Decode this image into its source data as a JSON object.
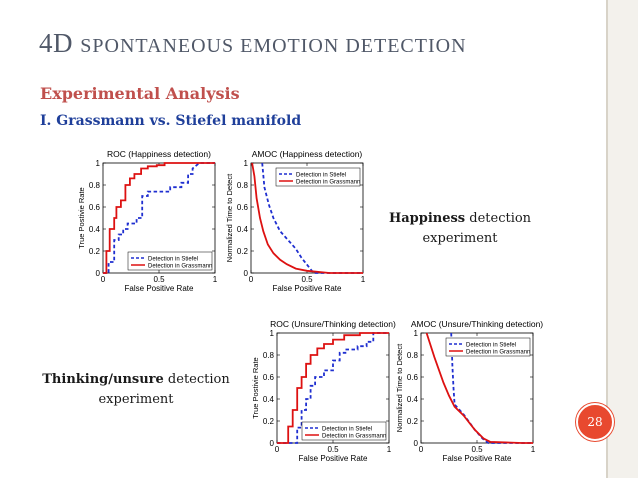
{
  "slide": {
    "title_first": "4D ",
    "title_rest": "SPONTANEOUS EMOTION DETECTION",
    "subtitle": "Experimental Analysis",
    "section": "I. Grassmann vs. Stiefel manifold",
    "caption_happiness_bold": "Happiness",
    "caption_happiness_rest": " detection",
    "caption_happiness_line2": "experiment",
    "caption_thinking_bold": "Thinking/unsure",
    "caption_thinking_rest": " detection",
    "caption_thinking_line2": "experiment",
    "page_number": "28"
  },
  "colors": {
    "title": "#505868",
    "subtitle": "#c0504d",
    "section": "#1f3f9a",
    "stiefel": "#1f2fd0",
    "grassmann": "#dd1111",
    "badge": "#e8492f",
    "rail": "#f3f1ec"
  },
  "chart_data": [
    {
      "type": "line",
      "title": "ROC (Happiness detection)",
      "xlabel": "False Positive Rate",
      "ylabel": "True Postivie Rate",
      "xlim": [
        0,
        1
      ],
      "ylim": [
        0,
        1
      ],
      "xticks": [
        "0",
        "0.5",
        "1"
      ],
      "yticks": [
        "0",
        "0.2",
        "0.4",
        "0.6",
        "0.8",
        "1"
      ],
      "legend_position": "bottom-right",
      "grid": false,
      "series": [
        {
          "name": "Detection in Stiefel",
          "style": "dashed",
          "color": "#1f2fd0",
          "x": [
            0,
            0.05,
            0.05,
            0.1,
            0.1,
            0.14,
            0.14,
            0.18,
            0.18,
            0.22,
            0.22,
            0.3,
            0.3,
            0.35,
            0.35,
            0.4,
            0.4,
            0.6,
            0.6,
            0.7,
            0.7,
            0.76,
            0.76,
            0.8,
            0.8,
            0.86,
            1
          ],
          "y": [
            0,
            0,
            0.1,
            0.1,
            0.3,
            0.3,
            0.35,
            0.35,
            0.4,
            0.4,
            0.45,
            0.45,
            0.5,
            0.5,
            0.7,
            0.7,
            0.74,
            0.74,
            0.78,
            0.78,
            0.82,
            0.82,
            0.9,
            0.9,
            0.95,
            1,
            1
          ]
        },
        {
          "name": "Detection in Grassmann",
          "style": "solid",
          "color": "#dd1111",
          "x": [
            0,
            0.03,
            0.03,
            0.06,
            0.06,
            0.1,
            0.1,
            0.12,
            0.12,
            0.16,
            0.16,
            0.2,
            0.2,
            0.24,
            0.24,
            0.28,
            0.28,
            0.34,
            0.34,
            0.4,
            0.4,
            0.48,
            0.48,
            0.55,
            0.55,
            0.7,
            0.7,
            1
          ],
          "y": [
            0,
            0,
            0.2,
            0.2,
            0.4,
            0.4,
            0.5,
            0.5,
            0.6,
            0.6,
            0.66,
            0.66,
            0.8,
            0.8,
            0.86,
            0.86,
            0.9,
            0.9,
            0.95,
            0.95,
            0.97,
            0.97,
            0.98,
            0.98,
            1,
            1,
            1,
            1
          ]
        }
      ]
    },
    {
      "type": "line",
      "title": "AMOC  (Happiness detection)",
      "xlabel": "False Positive Rate",
      "ylabel": "Normalized Time to Detect",
      "xlim": [
        0,
        1
      ],
      "ylim": [
        0,
        1
      ],
      "xticks": [
        "0",
        "0.5",
        "1"
      ],
      "yticks": [
        "0",
        "0.2",
        "0.4",
        "0.6",
        "0.8",
        "1"
      ],
      "legend_position": "top-right",
      "grid": false,
      "series": [
        {
          "name": "Detection in Stiefel",
          "style": "dashed",
          "color": "#1f2fd0",
          "x": [
            0.1,
            0.12,
            0.16,
            0.2,
            0.26,
            0.33,
            0.4,
            0.45,
            0.52,
            0.56,
            1
          ],
          "y": [
            1,
            0.78,
            0.62,
            0.5,
            0.38,
            0.3,
            0.22,
            0.14,
            0.05,
            0,
            0
          ]
        },
        {
          "name": "Detection in Grassmann",
          "style": "solid",
          "color": "#dd1111",
          "x": [
            0.01,
            0.03,
            0.05,
            0.08,
            0.11,
            0.15,
            0.2,
            0.26,
            0.32,
            0.4,
            0.5,
            0.6,
            0.7,
            0.8,
            0.9,
            1
          ],
          "y": [
            1,
            0.88,
            0.68,
            0.5,
            0.38,
            0.26,
            0.18,
            0.12,
            0.08,
            0.04,
            0.02,
            0.01,
            0,
            0,
            0,
            0
          ]
        }
      ]
    },
    {
      "type": "line",
      "title": "ROC (Unsure/Thinking detection)",
      "xlabel": "False Positive Rate",
      "ylabel": "True Postivie Rate",
      "xlim": [
        0,
        1
      ],
      "ylim": [
        0,
        1
      ],
      "xticks": [
        "0",
        "0.5",
        "1"
      ],
      "yticks": [
        "0",
        "0.2",
        "0.4",
        "0.6",
        "0.8",
        "1"
      ],
      "legend_position": "bottom-right",
      "grid": false,
      "series": [
        {
          "name": "Detection in Stiefel",
          "style": "dashed",
          "color": "#1f2fd0",
          "x": [
            0,
            0.18,
            0.18,
            0.22,
            0.22,
            0.26,
            0.26,
            0.3,
            0.3,
            0.34,
            0.34,
            0.42,
            0.42,
            0.5,
            0.5,
            0.56,
            0.56,
            0.62,
            0.62,
            0.72,
            0.72,
            0.8,
            0.8,
            0.86,
            0.86,
            1
          ],
          "y": [
            0,
            0,
            0.14,
            0.14,
            0.3,
            0.3,
            0.4,
            0.4,
            0.52,
            0.52,
            0.6,
            0.6,
            0.66,
            0.66,
            0.75,
            0.75,
            0.82,
            0.82,
            0.85,
            0.85,
            0.88,
            0.88,
            0.92,
            0.92,
            1,
            1
          ]
        },
        {
          "name": "Detection in Grassmann",
          "style": "solid",
          "color": "#dd1111",
          "x": [
            0,
            0.1,
            0.1,
            0.14,
            0.14,
            0.18,
            0.18,
            0.22,
            0.22,
            0.26,
            0.26,
            0.3,
            0.3,
            0.36,
            0.36,
            0.42,
            0.42,
            0.5,
            0.5,
            0.6,
            0.6,
            0.74,
            0.74,
            1
          ],
          "y": [
            0,
            0,
            0.15,
            0.15,
            0.3,
            0.3,
            0.5,
            0.5,
            0.6,
            0.6,
            0.72,
            0.72,
            0.8,
            0.8,
            0.86,
            0.86,
            0.9,
            0.9,
            0.94,
            0.94,
            0.98,
            0.98,
            1,
            1
          ]
        }
      ]
    },
    {
      "type": "line",
      "title": "AMOC (Unsure/Thinking detection)",
      "xlabel": "False Positive Rate",
      "ylabel": "Normalized Time to Detect",
      "xlim": [
        0,
        1
      ],
      "ylim": [
        0,
        1
      ],
      "xticks": [
        "0",
        "0.5",
        "1"
      ],
      "yticks": [
        "0",
        "0.2",
        "0.4",
        "0.6",
        "0.8",
        "1"
      ],
      "legend_position": "top-right",
      "grid": false,
      "series": [
        {
          "name": "Detection in Stiefel",
          "style": "dashed",
          "color": "#1f2fd0",
          "x": [
            0.27,
            0.28,
            0.29,
            0.3,
            0.38,
            0.48,
            0.55,
            0.6,
            1
          ],
          "y": [
            1,
            0.7,
            0.5,
            0.35,
            0.26,
            0.12,
            0.04,
            0,
            0
          ]
        },
        {
          "name": "Detection in Grassmann",
          "style": "solid",
          "color": "#dd1111",
          "x": [
            0.05,
            0.12,
            0.2,
            0.25,
            0.3,
            0.38,
            0.48,
            0.56,
            0.62,
            0.9,
            1
          ],
          "y": [
            1,
            0.78,
            0.55,
            0.43,
            0.33,
            0.25,
            0.12,
            0.04,
            0.01,
            0,
            0
          ]
        }
      ]
    }
  ]
}
